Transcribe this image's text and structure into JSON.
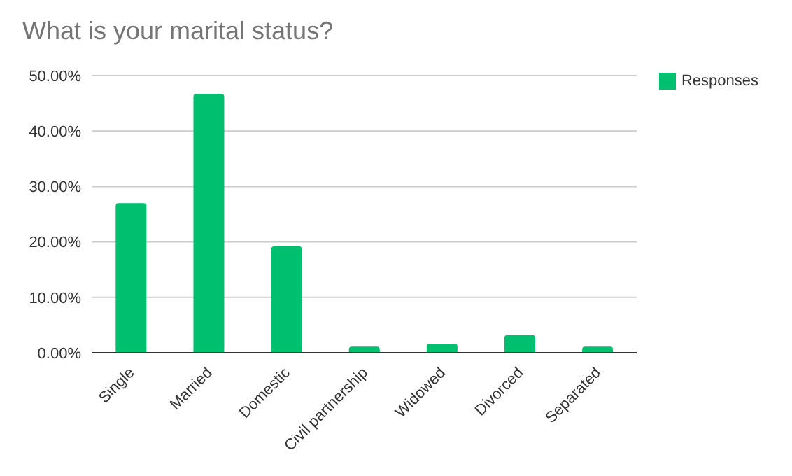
{
  "chart_data": {
    "type": "bar",
    "title": "What is your marital status?",
    "categories": [
      "Single",
      "Married",
      "Domestic",
      "Civil partnership",
      "Widowed",
      "Divorced",
      "Separated"
    ],
    "series": [
      {
        "name": "Responses",
        "color": "#00bf6f",
        "values": [
          27,
          46.7,
          19.2,
          1.1,
          1.6,
          3.2,
          1.1
        ]
      }
    ],
    "ylim": [
      0,
      50
    ],
    "yticks": [
      {
        "value": 0,
        "label": "0.00%"
      },
      {
        "value": 10,
        "label": "10.00%"
      },
      {
        "value": 20,
        "label": "20.00%"
      },
      {
        "value": 30,
        "label": "30.00%"
      },
      {
        "value": 40,
        "label": "40.00%"
      },
      {
        "value": 50,
        "label": "50.00%"
      }
    ],
    "grid": "y",
    "legend": "top right"
  }
}
